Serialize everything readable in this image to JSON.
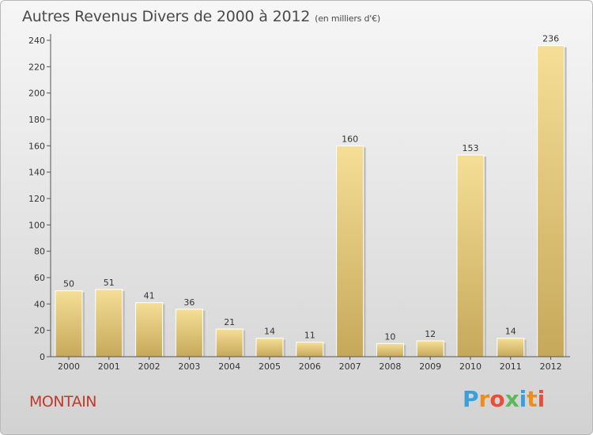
{
  "chart_data": {
    "type": "bar",
    "title": "Autres Revenus Divers de 2000 à 2012",
    "subtitle": "(en milliers d'€)",
    "categories": [
      "2000",
      "2001",
      "2002",
      "2003",
      "2004",
      "2005",
      "2006",
      "2007",
      "2008",
      "2009",
      "2010",
      "2011",
      "2012"
    ],
    "values": [
      50,
      51,
      41,
      36,
      21,
      14,
      11,
      160,
      10,
      12,
      153,
      14,
      236
    ],
    "data_labels": [
      "50",
      "51",
      "41",
      "36",
      "21",
      "14",
      "11",
      "160",
      "10",
      "12",
      "153",
      "14",
      "236"
    ],
    "ylim": [
      0,
      240
    ],
    "yticks": [
      0,
      20,
      40,
      60,
      80,
      100,
      120,
      140,
      160,
      180,
      200,
      220,
      240
    ],
    "grid": false,
    "bar_color_top": "#f5de96",
    "bar_color_bottom": "#c6a85a"
  },
  "footer": {
    "commune": "MONTAIN",
    "logo_letters": [
      "P",
      "r",
      "o",
      "x",
      "i",
      "t",
      "i"
    ],
    "logo_colors": [
      "#3aa0db",
      "#f08c1e",
      "#e94e3a",
      "#5cb85c",
      "#3aa0db",
      "#f08c1e",
      "#e94e3a"
    ]
  }
}
